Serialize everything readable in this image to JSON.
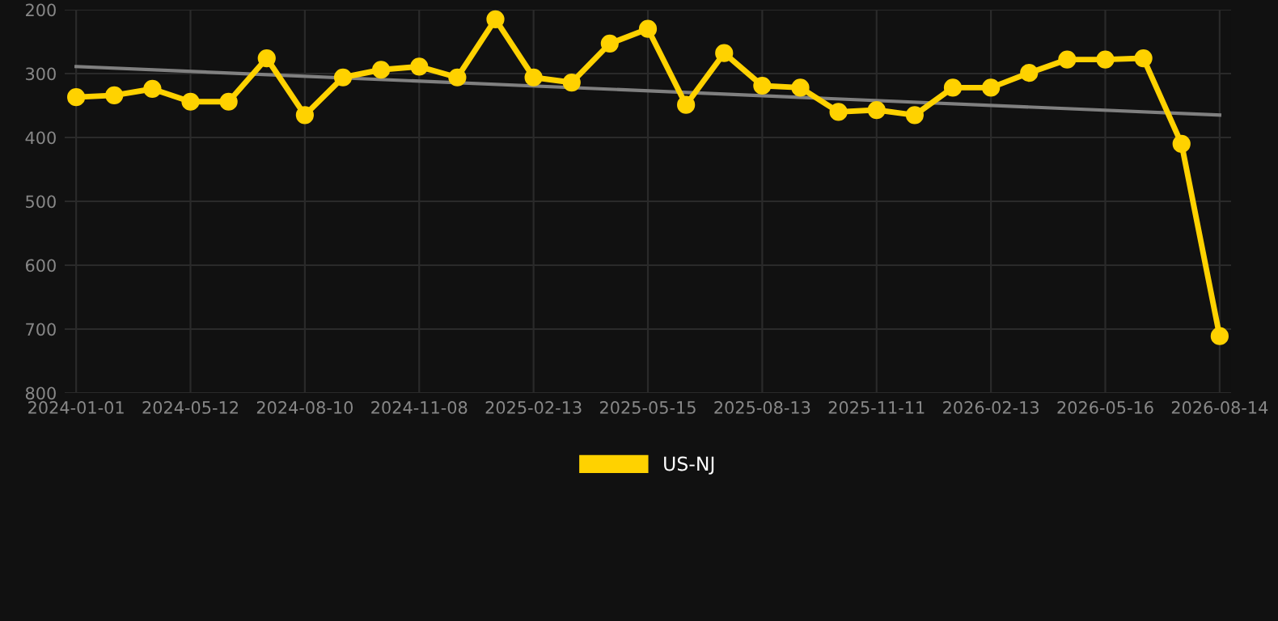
{
  "chart_data": {
    "type": "line",
    "categories": [
      "2024-01-01",
      null,
      null,
      "2024-05-12",
      null,
      null,
      "2024-08-10",
      null,
      null,
      "2024-11-08",
      null,
      null,
      "2025-02-13",
      null,
      null,
      "2025-05-15",
      null,
      null,
      "2025-08-13",
      null,
      null,
      "2025-11-11",
      null,
      null,
      "2026-02-13",
      null,
      null,
      "2026-05-16",
      null,
      null,
      "2026-08-14"
    ],
    "series": [
      {
        "name": "US-NJ",
        "color": "#ffd200",
        "marker": "circle",
        "values": [
          337,
          334,
          324,
          344,
          344,
          276,
          365,
          306,
          294,
          289,
          306,
          215,
          306,
          314,
          253,
          230,
          349,
          268,
          319,
          322,
          360,
          357,
          365,
          322,
          322,
          299,
          278,
          278,
          276,
          410,
          711
        ]
      },
      {
        "type": "line",
        "color": "#808080",
        "marker": "none",
        "values": [
          289,
          null,
          null,
          null,
          null,
          null,
          null,
          null,
          null,
          null,
          null,
          null,
          null,
          null,
          null,
          null,
          null,
          null,
          null,
          null,
          null,
          null,
          null,
          null,
          null,
          null,
          null,
          null,
          null,
          null,
          365
        ]
      }
    ],
    "ylim": [
      800,
      200
    ],
    "yticks": [
      200,
      300,
      400,
      500,
      600,
      700,
      800
    ],
    "grid": true,
    "legend": "bottom",
    "line_style": "solid"
  }
}
